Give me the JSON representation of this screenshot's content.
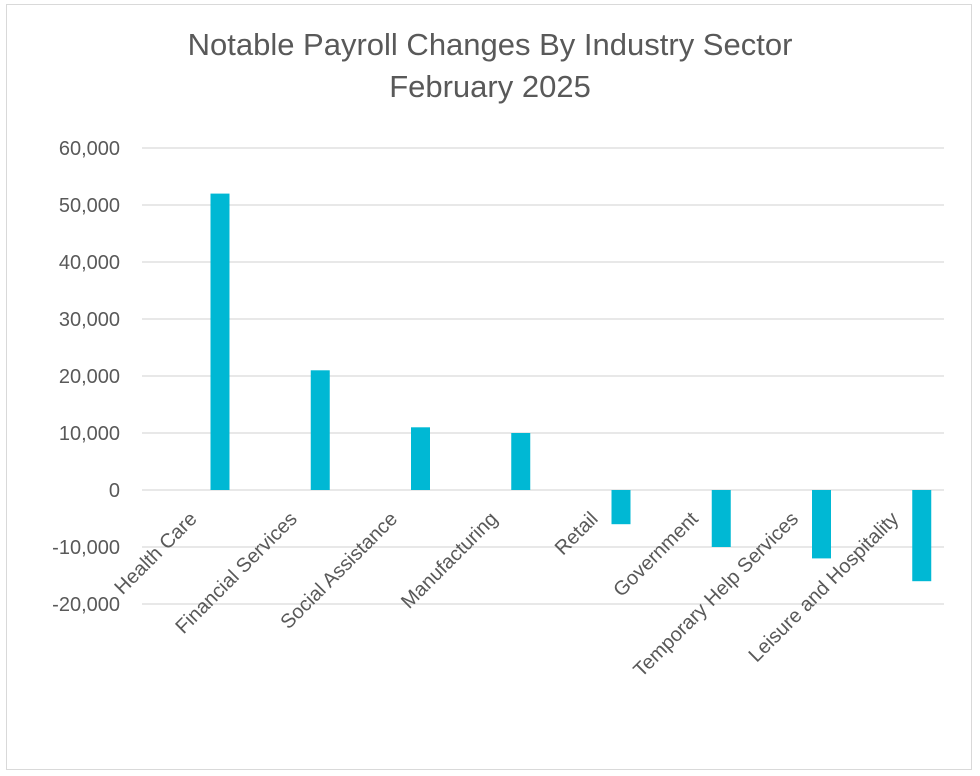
{
  "chart_data": {
    "type": "bar",
    "title": "Notable Payroll Changes By Industry Sector",
    "subtitle": "February 2025",
    "xlabel": "",
    "ylabel": "",
    "ylim": [
      -20000,
      60000
    ],
    "yticks": [
      "60,000",
      "50,000",
      "40,000",
      "30,000",
      "20,000",
      "10,000",
      "0",
      "-10,000",
      "-20,000"
    ],
    "categories": [
      "Health Care",
      "Financial Services",
      "Social Assistance",
      "Manufacturing",
      "Retail",
      "Government",
      "Temporary Help Services",
      "Leisure and Hospitality"
    ],
    "values": [
      52000,
      21000,
      11000,
      10000,
      -6000,
      -10000,
      -12000,
      -16000
    ],
    "bar_color": "#00b8d4",
    "grid": true,
    "legend": "none"
  }
}
